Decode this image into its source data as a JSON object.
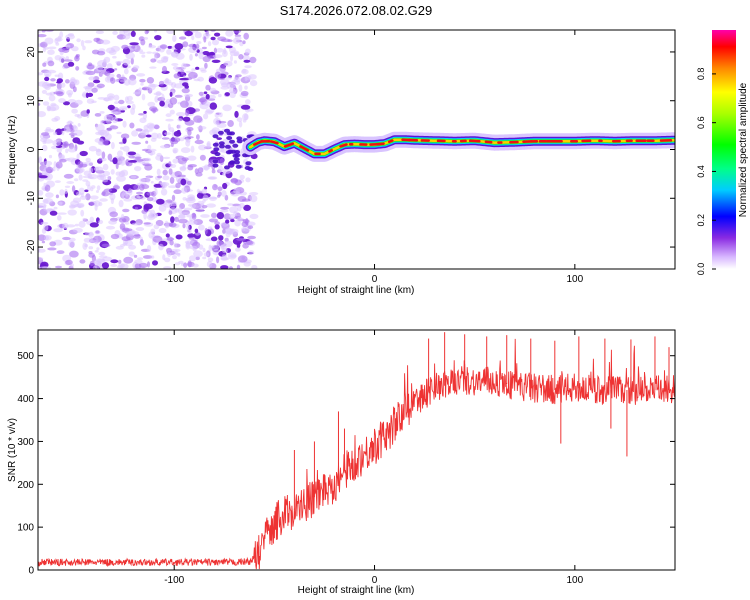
{
  "title": "S174.2026.072.08.02.G29",
  "chart_data": [
    {
      "type": "heatmap",
      "name": "spectrogram",
      "xlabel": "Height of straight line (km)",
      "ylabel": "Frequency (Hz)",
      "xlim": [
        -168,
        150
      ],
      "ylim": [
        -24.5,
        24.5
      ],
      "xticks": [
        -100,
        0,
        100
      ],
      "yticks": [
        -20,
        -10,
        0,
        10,
        20
      ],
      "noise_region_x": [
        -168,
        -60
      ],
      "ridge": {
        "x": [
          -62,
          -58,
          -55,
          -50,
          -45,
          -40,
          -35,
          -30,
          -25,
          -20,
          -15,
          -10,
          -5,
          0,
          5,
          10,
          15,
          20,
          30,
          40,
          50,
          60,
          70,
          80,
          90,
          100,
          110,
          120,
          130,
          140,
          150
        ],
        "y": [
          0.5,
          1.5,
          1.8,
          1.6,
          0.6,
          1.3,
          0.2,
          -0.9,
          -0.9,
          0.1,
          1.0,
          1.1,
          1.0,
          1.0,
          1.2,
          2.0,
          2.0,
          1.9,
          1.8,
          1.7,
          1.8,
          1.4,
          1.5,
          1.7,
          1.7,
          1.7,
          1.8,
          1.7,
          1.8,
          1.8,
          1.9
        ]
      },
      "colorbar": {
        "label": "Normalized spectral amplitude",
        "ticks": [
          "0.0",
          "0.2",
          "0.4",
          "0.6",
          "0.8"
        ],
        "range": [
          0,
          0.98
        ]
      }
    },
    {
      "type": "line",
      "name": "snr",
      "xlabel": "Height of straight line (km)",
      "ylabel": "SNR (10 * v/v)",
      "xlim": [
        -168,
        150
      ],
      "ylim": [
        0,
        560
      ],
      "xticks": [
        -100,
        0,
        100
      ],
      "yticks": [
        0,
        100,
        200,
        300,
        400,
        500
      ],
      "color": "#ee3333",
      "series": [
        {
          "name": "SNR",
          "x": [
            -168,
            -150,
            -130,
            -110,
            -90,
            -70,
            -62,
            -58,
            -55,
            -50,
            -45,
            -40,
            -35,
            -30,
            -25,
            -20,
            -15,
            -10,
            -5,
            0,
            5,
            10,
            15,
            20,
            25,
            30,
            35,
            40,
            45,
            50,
            60,
            70,
            80,
            90,
            100,
            110,
            120,
            130,
            140,
            150
          ],
          "values": [
            18,
            18,
            18,
            18,
            18,
            18,
            20,
            35,
            70,
            110,
            130,
            140,
            150,
            170,
            190,
            200,
            230,
            250,
            270,
            290,
            310,
            340,
            370,
            390,
            410,
            425,
            430,
            440,
            445,
            440,
            440,
            430,
            425,
            420,
            425,
            420,
            420,
            420,
            420,
            420
          ],
          "spikes": [
            {
              "x": 27,
              "v": 540
            },
            {
              "x": 35,
              "v": 555
            },
            {
              "x": 45,
              "v": 550
            },
            {
              "x": 56,
              "v": 545
            },
            {
              "x": 66,
              "v": 548
            },
            {
              "x": 78,
              "v": 540
            },
            {
              "x": 90,
              "v": 535
            },
            {
              "x": 102,
              "v": 545
            },
            {
              "x": 115,
              "v": 540
            },
            {
              "x": 128,
              "v": 538
            },
            {
              "x": 140,
              "v": 545
            },
            {
              "x": 147,
              "v": 520
            },
            {
              "x": 93,
              "v": 295
            },
            {
              "x": 126,
              "v": 265
            },
            {
              "x": 118,
              "v": 330
            },
            {
              "x": -40,
              "v": 280
            },
            {
              "x": -30,
              "v": 300
            },
            {
              "x": -18,
              "v": 370
            },
            {
              "x": -15,
              "v": 330
            }
          ]
        }
      ]
    }
  ]
}
